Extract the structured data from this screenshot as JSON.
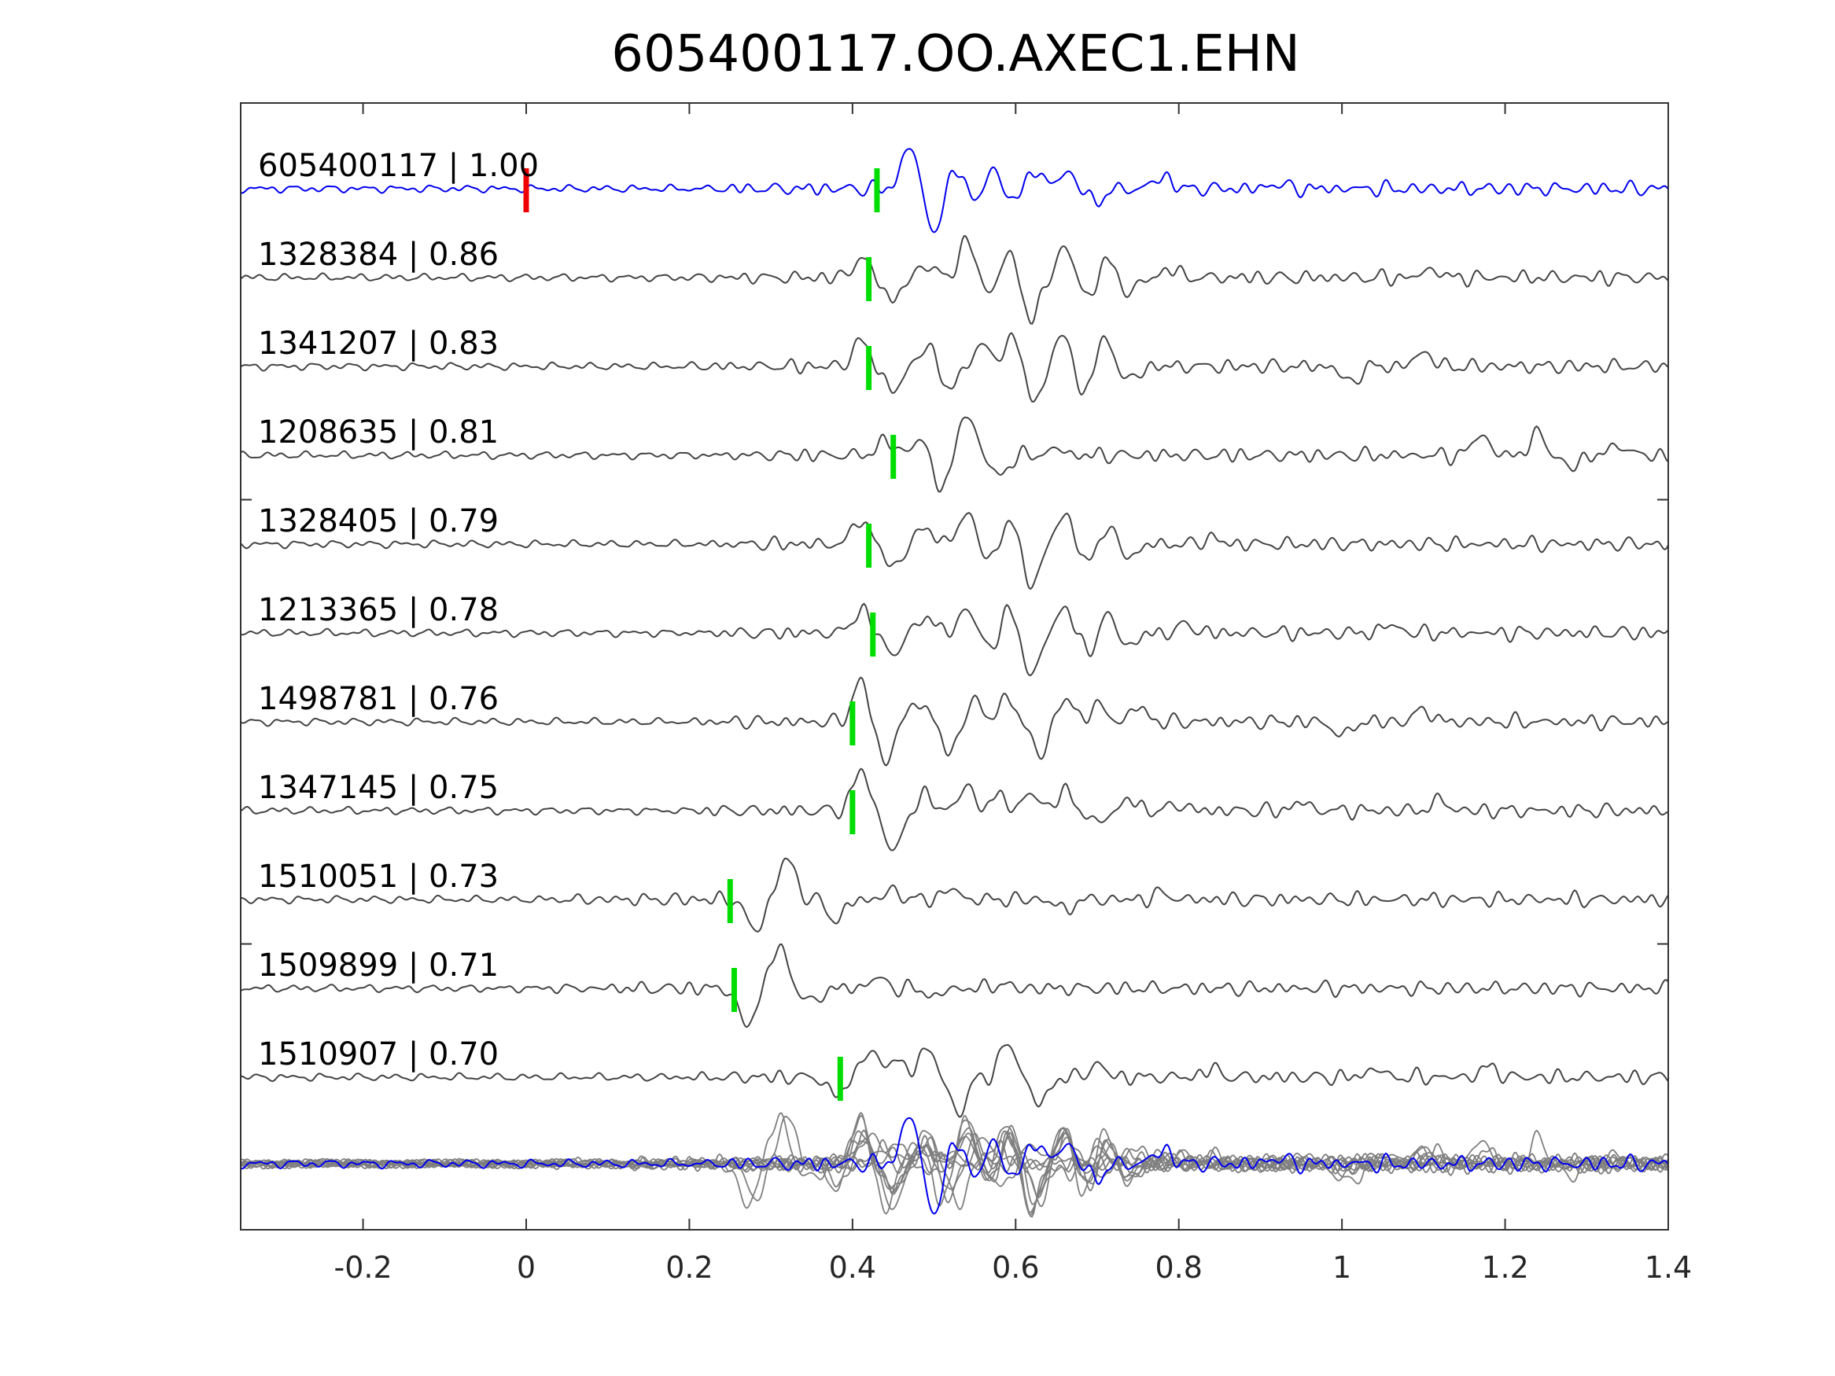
{
  "chart_data": {
    "type": "line",
    "title": "605400117.OO.AXEC1.EHN",
    "xlabel": "",
    "ylabel": "",
    "xlim": [
      -0.35,
      1.4
    ],
    "xticks": [
      -0.2,
      0,
      0.2,
      0.4,
      0.6,
      0.8,
      1,
      1.2,
      1.4
    ],
    "xtick_labels": [
      "-0.2",
      "0",
      "0.2",
      "0.4",
      "0.6",
      "0.8",
      "1",
      "1.2",
      "1.4"
    ],
    "grid": false,
    "colors": {
      "reference": "#0000ee",
      "match": "#444444",
      "stack": "#7f7f7f",
      "origin_marker": "#ee0000",
      "pick_marker": "#00dd00",
      "axes": "#333333"
    },
    "origin_marker_x": 0.0,
    "series": [
      {
        "label": "605400117 | 1.00",
        "reference": true,
        "pick": 0.43,
        "peaks": [
          [
            0.47,
            1.0
          ],
          [
            0.5,
            -1.0
          ],
          [
            0.53,
            0.55
          ],
          [
            0.55,
            -0.45
          ],
          [
            0.57,
            0.5
          ],
          [
            0.6,
            -0.35
          ],
          [
            0.62,
            0.5
          ],
          [
            0.66,
            0.4
          ],
          [
            0.7,
            -0.3
          ],
          [
            0.78,
            0.3
          ],
          [
            0.92,
            0.12
          ]
        ]
      },
      {
        "label": "1328384 | 0.86",
        "reference": false,
        "pick": 0.42,
        "peaks": [
          [
            0.41,
            0.45
          ],
          [
            0.45,
            -0.55
          ],
          [
            0.49,
            0.3
          ],
          [
            0.54,
            0.85
          ],
          [
            0.57,
            -0.4
          ],
          [
            0.59,
            0.6
          ],
          [
            0.62,
            -1.0
          ],
          [
            0.66,
            0.7
          ],
          [
            0.69,
            -0.5
          ],
          [
            0.71,
            0.45
          ],
          [
            0.74,
            -0.35
          ],
          [
            0.79,
            0.2
          ],
          [
            1.11,
            0.2
          ]
        ]
      },
      {
        "label": "1341207 | 0.83",
        "reference": false,
        "pick": 0.42,
        "peaks": [
          [
            0.41,
            0.6
          ],
          [
            0.45,
            -0.6
          ],
          [
            0.49,
            0.45
          ],
          [
            0.52,
            -0.5
          ],
          [
            0.56,
            0.55
          ],
          [
            0.6,
            0.85
          ],
          [
            0.62,
            -1.0
          ],
          [
            0.66,
            0.85
          ],
          [
            0.68,
            -0.7
          ],
          [
            0.71,
            0.6
          ],
          [
            0.74,
            -0.35
          ],
          [
            1.01,
            -0.4
          ],
          [
            1.1,
            0.35
          ]
        ]
      },
      {
        "label": "1208635 | 0.81",
        "reference": false,
        "pick": 0.45,
        "peaks": [
          [
            0.44,
            0.35
          ],
          [
            0.48,
            0.35
          ],
          [
            0.51,
            -0.75
          ],
          [
            0.54,
            1.0
          ],
          [
            0.58,
            -0.5
          ],
          [
            0.65,
            0.15
          ],
          [
            1.17,
            0.5
          ],
          [
            1.24,
            0.5
          ],
          [
            1.28,
            -0.3
          ],
          [
            1.34,
            0.25
          ]
        ]
      },
      {
        "label": "1328405 | 0.79",
        "reference": false,
        "pick": 0.42,
        "peaks": [
          [
            0.41,
            0.6
          ],
          [
            0.45,
            -0.55
          ],
          [
            0.49,
            0.4
          ],
          [
            0.54,
            0.75
          ],
          [
            0.57,
            -0.45
          ],
          [
            0.59,
            0.6
          ],
          [
            0.62,
            -0.95
          ],
          [
            0.66,
            0.7
          ],
          [
            0.69,
            -0.5
          ],
          [
            0.71,
            0.45
          ],
          [
            0.74,
            -0.3
          ],
          [
            0.84,
            0.15
          ]
        ]
      },
      {
        "label": "1213365 | 0.78",
        "reference": false,
        "pick": 0.425,
        "peaks": [
          [
            0.41,
            0.55
          ],
          [
            0.45,
            -0.5
          ],
          [
            0.49,
            0.4
          ],
          [
            0.54,
            0.55
          ],
          [
            0.57,
            -0.4
          ],
          [
            0.59,
            0.55
          ],
          [
            0.62,
            -1.0
          ],
          [
            0.66,
            0.6
          ],
          [
            0.69,
            -0.5
          ],
          [
            0.71,
            0.45
          ],
          [
            0.74,
            -0.3
          ],
          [
            0.81,
            0.2
          ],
          [
            1.06,
            0.2
          ]
        ]
      },
      {
        "label": "1498781 | 0.76",
        "reference": false,
        "pick": 0.4,
        "peaks": [
          [
            0.41,
            0.95
          ],
          [
            0.44,
            -0.95
          ],
          [
            0.48,
            0.5
          ],
          [
            0.52,
            -0.7
          ],
          [
            0.55,
            0.5
          ],
          [
            0.59,
            0.55
          ],
          [
            0.63,
            -0.8
          ],
          [
            0.66,
            0.55
          ],
          [
            0.7,
            0.4
          ],
          [
            0.75,
            0.35
          ],
          [
            1.0,
            -0.35
          ],
          [
            1.1,
            0.3
          ]
        ]
      },
      {
        "label": "1347145 | 0.75",
        "reference": false,
        "pick": 0.4,
        "peaks": [
          [
            0.41,
            0.95
          ],
          [
            0.45,
            -1.0
          ],
          [
            0.49,
            0.35
          ],
          [
            0.54,
            0.55
          ],
          [
            0.58,
            0.35
          ],
          [
            0.62,
            0.4
          ],
          [
            0.66,
            0.45
          ],
          [
            0.7,
            -0.3
          ],
          [
            0.74,
            0.25
          ],
          [
            0.8,
            0.15
          ],
          [
            0.95,
            0.2
          ],
          [
            1.12,
            0.25
          ]
        ]
      },
      {
        "label": "1510051 | 0.73",
        "reference": false,
        "pick": 0.25,
        "peaks": [
          [
            0.28,
            -0.75
          ],
          [
            0.32,
            1.0
          ],
          [
            0.38,
            -0.5
          ],
          [
            0.45,
            0.2
          ],
          [
            0.52,
            0.25
          ],
          [
            0.66,
            -0.25
          ],
          [
            0.78,
            0.15
          ]
        ]
      },
      {
        "label": "1509899 | 0.71",
        "reference": false,
        "pick": 0.255,
        "peaks": [
          [
            0.27,
            -0.9
          ],
          [
            0.31,
            1.0
          ],
          [
            0.35,
            -0.35
          ],
          [
            0.43,
            0.25
          ],
          [
            0.5,
            -0.2
          ],
          [
            0.58,
            0.1
          ]
        ]
      },
      {
        "label": "1510907 | 0.70",
        "reference": false,
        "pick": 0.385,
        "peaks": [
          [
            0.38,
            -0.45
          ],
          [
            0.42,
            0.6
          ],
          [
            0.45,
            0.45
          ],
          [
            0.49,
            0.7
          ],
          [
            0.53,
            -0.85
          ],
          [
            0.59,
            0.8
          ],
          [
            0.63,
            -0.65
          ],
          [
            0.7,
            0.3
          ],
          [
            0.84,
            0.2
          ],
          [
            1.04,
            0.2
          ],
          [
            1.18,
            0.25
          ]
        ]
      }
    ]
  }
}
